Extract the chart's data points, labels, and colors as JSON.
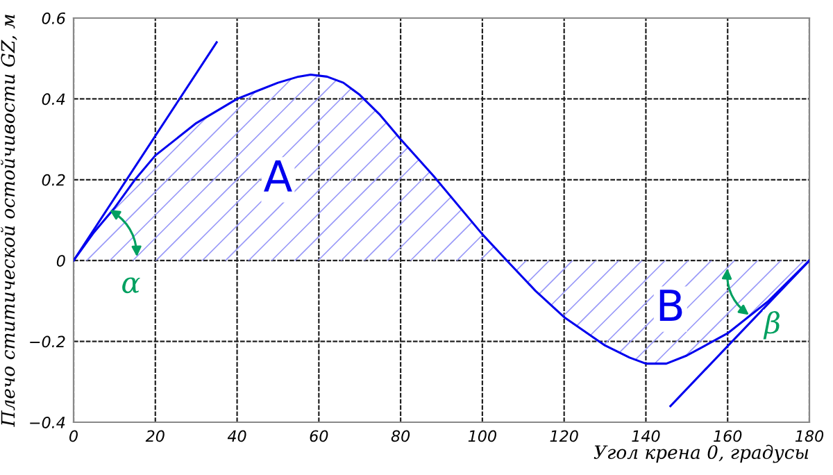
{
  "chart_data": {
    "type": "area",
    "xlabel": "Угол крена 0, градусы",
    "ylabel": "Плечо ститической остойчивости GZ, м",
    "xlim": [
      0,
      180
    ],
    "ylim": [
      -0.4,
      0.6
    ],
    "xticks": [
      0,
      20,
      40,
      60,
      80,
      100,
      120,
      140,
      160,
      180
    ],
    "yticks": [
      -0.4,
      -0.2,
      0,
      0.2,
      0.4,
      0.6
    ],
    "grid": true,
    "marker": "none",
    "line_style": "solid",
    "series": [
      {
        "color": "#0000ee",
        "x": [
          0,
          5,
          10,
          15,
          20,
          25,
          30,
          35,
          40,
          45,
          50,
          55,
          58,
          62,
          66,
          70,
          75,
          80,
          88,
          100,
          106,
          113,
          120,
          130,
          136,
          140,
          145,
          150,
          160,
          170,
          180
        ],
        "values": [
          0,
          0.07,
          0.13,
          0.2,
          0.26,
          0.3,
          0.34,
          0.37,
          0.4,
          0.42,
          0.44,
          0.455,
          0.46,
          0.455,
          0.44,
          0.41,
          0.36,
          0.3,
          0.21,
          0.065,
          0,
          -0.075,
          -0.14,
          -0.21,
          -0.24,
          -0.255,
          -0.255,
          -0.235,
          -0.18,
          -0.1,
          0
        ]
      },
      {
        "type": "line",
        "color": "#0000ee",
        "x": [
          0,
          35
        ],
        "values": [
          0,
          0.54
        ]
      },
      {
        "type": "line",
        "color": "#0000ee",
        "x": [
          146,
          180
        ],
        "values": [
          -0.36,
          0
        ]
      }
    ],
    "annotations": [
      "A",
      "B",
      "α",
      "β"
    ]
  }
}
